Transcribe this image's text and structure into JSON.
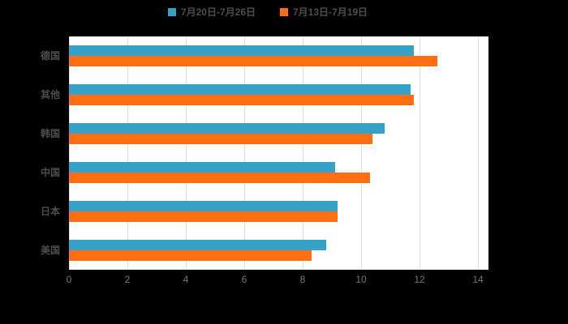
{
  "page": {
    "background_color": "#000000",
    "plot_background_color": "#ffffff",
    "gridline_color": "#e2e2e2",
    "label_color": "#4d4d4d",
    "tick_color": "#767676"
  },
  "legend": {
    "items": [
      {
        "label": "7月20日-7月26日",
        "color": "#35A1C9"
      },
      {
        "label": "7月13日-7月19日",
        "color": "#FF6F12"
      }
    ]
  },
  "chart_data": {
    "type": "bar",
    "orientation": "horizontal",
    "title": "",
    "xlabel": "",
    "ylabel": "",
    "categories": [
      "德国",
      "其他",
      "韩国",
      "中国",
      "日本",
      "美国"
    ],
    "series": [
      {
        "name": "7月20日-7月26日",
        "color": "#35A1C9",
        "values": [
          11.8,
          11.7,
          10.8,
          9.1,
          9.2,
          8.8
        ]
      },
      {
        "name": "7月13日-7月19日",
        "color": "#FF6F12",
        "values": [
          12.6,
          11.8,
          10.4,
          10.3,
          9.2,
          8.3
        ]
      }
    ],
    "xlim": [
      0,
      14.3
    ],
    "x_ticks": [
      0,
      2,
      4,
      6,
      8,
      10,
      12,
      14
    ],
    "grid": true,
    "legend_position": "top"
  }
}
